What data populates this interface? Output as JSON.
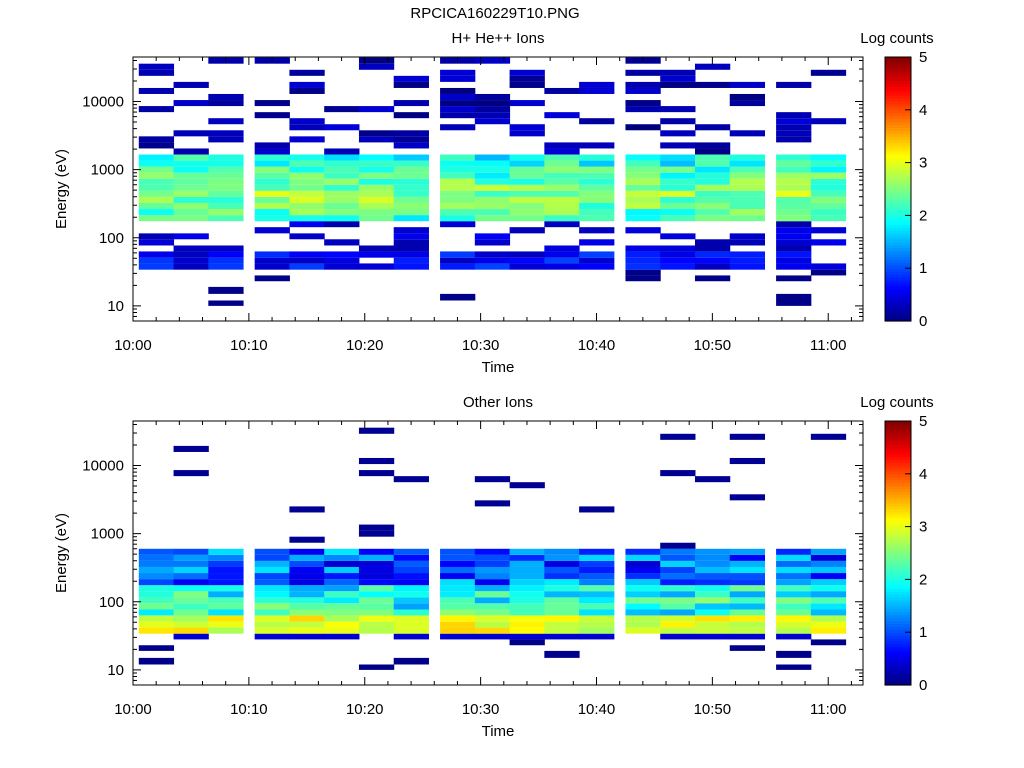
{
  "page_title": "RPCICA160229T10.PNG",
  "colors": {
    "colormap": [
      "#00007f",
      "#0000ff",
      "#007fff",
      "#00ffff",
      "#7fff7f",
      "#ffff00",
      "#ff7f00",
      "#ff0000",
      "#7f0000"
    ]
  },
  "chart_data": [
    {
      "type": "heatmap",
      "title": "H+ He++ Ions",
      "xlabel": "Time",
      "ylabel": "Energy (eV)",
      "xlim": [
        "10:00",
        "11:03"
      ],
      "x_ticks": [
        "10:00",
        "10:10",
        "10:20",
        "10:30",
        "10:40",
        "10:50",
        "11:00"
      ],
      "ylim": [
        6,
        45000
      ],
      "yscale": "log",
      "y_ticks": [
        "10",
        "100",
        "1000",
        "10000"
      ],
      "colorbar": {
        "label": "Log counts",
        "range": [
          0,
          5
        ],
        "ticks": [
          "0",
          "1",
          "2",
          "3",
          "4",
          "5"
        ]
      },
      "time_bins": [
        "10:02",
        "10:05",
        "10:08",
        "10:12",
        "10:15",
        "10:18",
        "10:21",
        "10:24",
        "10:28",
        "10:31",
        "10:34",
        "10:37",
        "10:40",
        "10:44",
        "10:47",
        "10:50",
        "10:53",
        "10:57",
        "11:00"
      ],
      "energy_bins_eV": [
        10,
        12,
        15,
        19,
        23,
        28,
        34,
        42,
        51,
        63,
        77,
        95,
        116,
        143,
        175,
        215,
        264,
        324,
        398,
        488,
        599,
        735,
        902,
        1107,
        1358,
        1667,
        2045,
        2510,
        3080,
        3780,
        4640,
        5690,
        6980,
        8570,
        10500,
        12900,
        15800,
        19400,
        23800,
        29200,
        35900
      ],
      "profile": {
        "main_band_eV": [
          150,
          1400
        ],
        "main_band_log_counts": 2.0,
        "low_band_eV": [
          30,
          60
        ],
        "low_band_log_counts": 0.5,
        "high_energy_speckle_log_counts": 0.2
      }
    },
    {
      "type": "heatmap",
      "title": "Other Ions",
      "xlabel": "Time",
      "ylabel": "Energy (eV)",
      "xlim": [
        "10:00",
        "11:03"
      ],
      "x_ticks": [
        "10:00",
        "10:10",
        "10:20",
        "10:30",
        "10:40",
        "10:50",
        "11:00"
      ],
      "ylim": [
        6,
        45000
      ],
      "yscale": "log",
      "y_ticks": [
        "10",
        "100",
        "1000",
        "10000"
      ],
      "colorbar": {
        "label": "Log counts",
        "range": [
          0,
          5
        ],
        "ticks": [
          "0",
          "1",
          "2",
          "3",
          "4",
          "5"
        ]
      },
      "time_bins": [
        "10:02",
        "10:05",
        "10:08",
        "10:12",
        "10:15",
        "10:18",
        "10:21",
        "10:24",
        "10:28",
        "10:31",
        "10:34",
        "10:37",
        "10:40",
        "10:44",
        "10:47",
        "10:50",
        "10:53",
        "10:57",
        "11:00"
      ],
      "energy_bins_eV": [
        10,
        12,
        15,
        19,
        23,
        28,
        34,
        42,
        51,
        63,
        77,
        95,
        116,
        143,
        175,
        215,
        264,
        324,
        398,
        488,
        599,
        735,
        902,
        1107,
        1358,
        1667,
        2045,
        2510,
        3080,
        3780,
        4640,
        5690,
        6980,
        8570,
        10500,
        12900,
        15800,
        19400,
        23800,
        29200,
        35900
      ],
      "profile": {
        "peak_band_eV": [
          33,
          55
        ],
        "peak_log_counts": 3.2,
        "mid_band_eV": [
          55,
          160
        ],
        "mid_band_log_counts": 2.0,
        "upper_band_eV": [
          160,
          520
        ],
        "upper_band_log_counts": 1.0
      }
    }
  ]
}
